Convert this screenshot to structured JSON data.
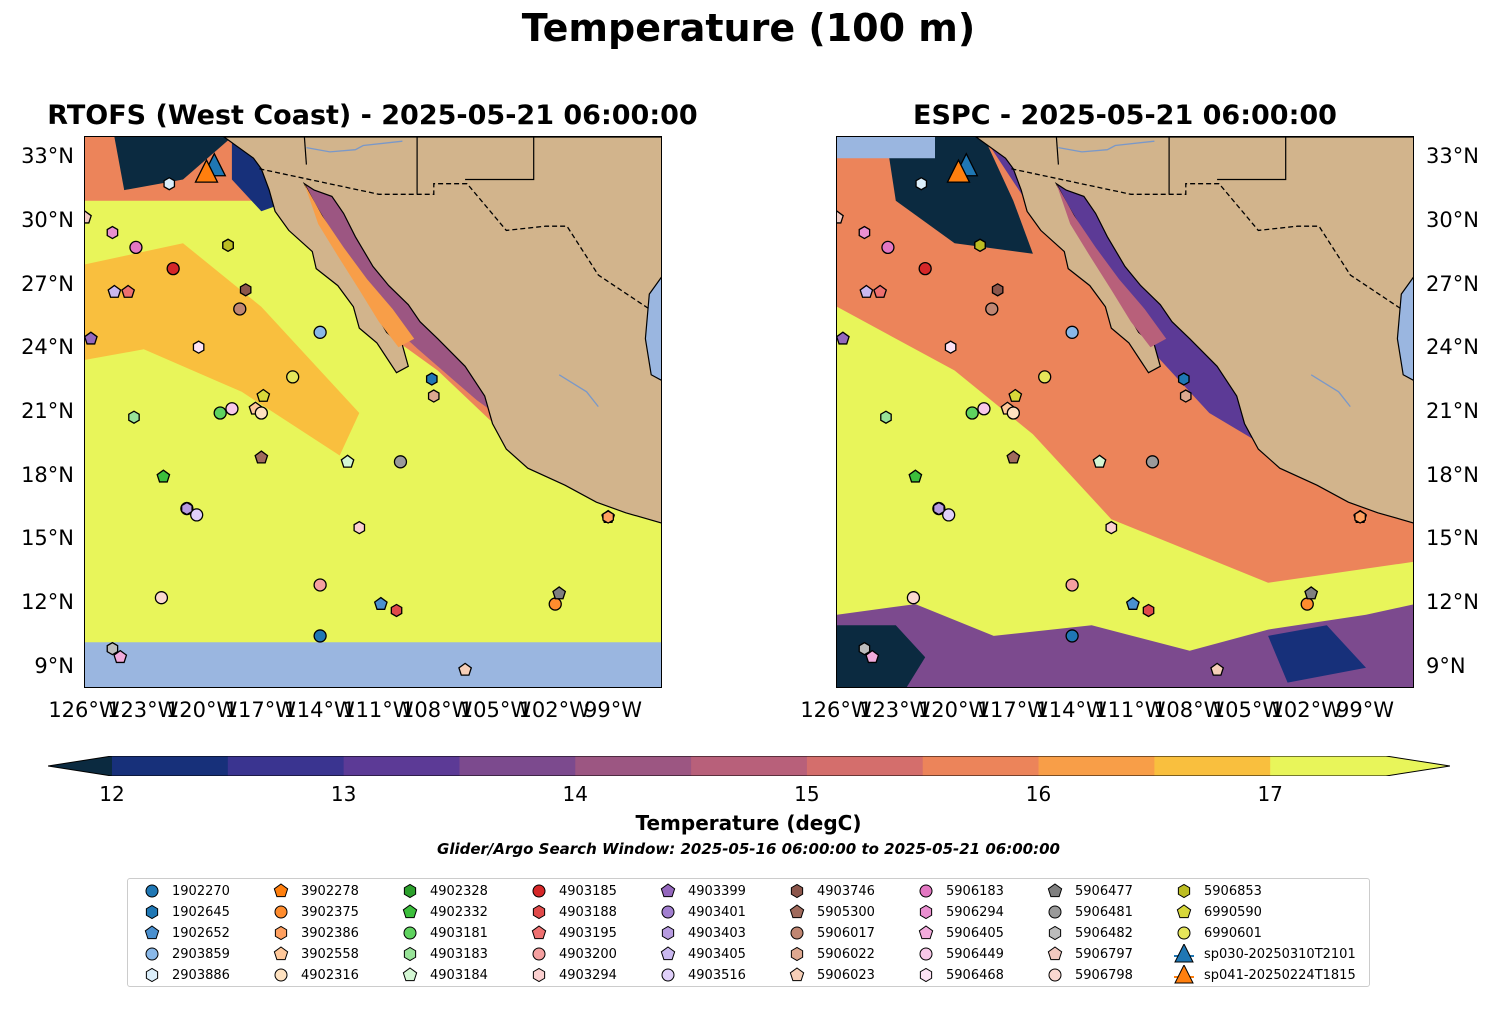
{
  "figure": {
    "suptitle": "Temperature (100 m)",
    "left_title": "RTOFS (West Coast) - 2025-05-21 06:00:00",
    "right_title": "ESPC - 2025-05-21 06:00:00",
    "colorbar_label": "Temperature (degC)",
    "search_window": "Glider/Argo Search Window: 2025-05-16 06:00:00 to 2025-05-21 06:00:00"
  },
  "chart_data": {
    "type": "heatmap",
    "xlim": [
      -126,
      -96.5
    ],
    "ylim": [
      8,
      34
    ],
    "x_ticks": [
      -126,
      -123,
      -120,
      -117,
      -114,
      -111,
      -108,
      -105,
      -102,
      -99
    ],
    "x_tick_labels": [
      "126°W",
      "123°W",
      "120°W",
      "117°W",
      "114°W",
      "111°W",
      "108°W",
      "105°W",
      "102°W",
      "99°W"
    ],
    "y_ticks": [
      9,
      12,
      15,
      18,
      21,
      24,
      27,
      30,
      33
    ],
    "y_tick_labels": [
      "9°N",
      "12°N",
      "15°N",
      "18°N",
      "21°N",
      "24°N",
      "27°N",
      "30°N",
      "33°N"
    ],
    "colorbar": {
      "min": 12,
      "max": 17.5,
      "step": 0.5,
      "extend": "both",
      "ticks": [
        12,
        13,
        14,
        15,
        16,
        17
      ],
      "colors": [
        "#0b2a40",
        "#17307a",
        "#3a3490",
        "#5c3a96",
        "#7c4a8e",
        "#9c5682",
        "#b8607a",
        "#d46e6c",
        "#ec845a",
        "#f89e48",
        "#f9bf3e",
        "#e8f55a"
      ]
    },
    "land_color": "#d2b48c",
    "water_color": "#9ab6e0",
    "platforms": [
      {
        "id": "1902270",
        "marker": "circle",
        "color": "#1f77b4",
        "lon": -114,
        "lat": 10.5
      },
      {
        "id": "1902645",
        "marker": "hexagon",
        "color": "#1f77b4",
        "lon": -108.3,
        "lat": 22.6
      },
      {
        "id": "1902652",
        "marker": "pentagon",
        "color": "#4a90cf",
        "lon": -110.9,
        "lat": 12
      },
      {
        "id": "2903859",
        "marker": "circle",
        "color": "#89b8e8",
        "lon": -114,
        "lat": 24.8
      },
      {
        "id": "2903886",
        "marker": "hexagon",
        "color": "#dbeefa",
        "lon": -121.7,
        "lat": 31.8
      },
      {
        "id": "3902278",
        "marker": "pentagon",
        "color": "#ff7f0e",
        "lon": -99.3,
        "lat": 16.1
      },
      {
        "id": "3902375",
        "marker": "circle",
        "color": "#ff8c2e",
        "lon": -102,
        "lat": 12
      },
      {
        "id": "3902386",
        "marker": "hexagon",
        "color": "#ffa060",
        "lon": -99.3,
        "lat": 16.1
      },
      {
        "id": "3902558",
        "marker": "pentagon",
        "color": "#ffc89a",
        "lon": -117.3,
        "lat": 21.2
      },
      {
        "id": "4902316",
        "marker": "circle",
        "color": "#ffe2c0",
        "lon": -117,
        "lat": 21
      },
      {
        "id": "4902328",
        "marker": "hexagon",
        "color": "#2ca02c",
        "lon": -118.7,
        "lat": 28.9
      },
      {
        "id": "4902332",
        "marker": "pentagon",
        "color": "#3cbf3c",
        "lon": -122,
        "lat": 18
      },
      {
        "id": "4903181",
        "marker": "circle",
        "color": "#5fd35f",
        "lon": -119.1,
        "lat": 21
      },
      {
        "id": "4903183",
        "marker": "hexagon",
        "color": "#98e398",
        "lon": -123.5,
        "lat": 20.8
      },
      {
        "id": "4903184",
        "marker": "pentagon",
        "color": "#d4f7d4",
        "lon": -112.6,
        "lat": 18.7
      },
      {
        "id": "4903185",
        "marker": "circle",
        "color": "#d62728",
        "lon": -121.5,
        "lat": 27.8
      },
      {
        "id": "4903188",
        "marker": "hexagon",
        "color": "#e04a4a",
        "lon": -110.1,
        "lat": 11.7
      },
      {
        "id": "4903195",
        "marker": "pentagon",
        "color": "#ee7070",
        "lon": -123.8,
        "lat": 26.7
      },
      {
        "id": "4903200",
        "marker": "circle",
        "color": "#f5a0a0",
        "lon": -114,
        "lat": 12.9
      },
      {
        "id": "4903294",
        "marker": "hexagon",
        "color": "#fbd0d0",
        "lon": -112,
        "lat": 15.6
      },
      {
        "id": "4903399",
        "marker": "pentagon",
        "color": "#9467bd",
        "lon": -125.7,
        "lat": 24.5
      },
      {
        "id": "4903401",
        "marker": "circle",
        "color": "#a27fd0",
        "lon": -120.8,
        "lat": 16.5
      },
      {
        "id": "4903403",
        "marker": "hexagon",
        "color": "#b79be0",
        "lon": -120.8,
        "lat": 16.5
      },
      {
        "id": "4903405",
        "marker": "pentagon",
        "color": "#cab8ef",
        "lon": -124.5,
        "lat": 26.7
      },
      {
        "id": "4903516",
        "marker": "circle",
        "color": "#e0d0fa",
        "lon": -120.3,
        "lat": 16.2
      },
      {
        "id": "4903746",
        "marker": "hexagon",
        "color": "#8c564b",
        "lon": -117.8,
        "lat": 26.8
      },
      {
        "id": "5905300",
        "marker": "pentagon",
        "color": "#a06a5c",
        "lon": -117,
        "lat": 18.9
      },
      {
        "id": "5906017",
        "marker": "circle",
        "color": "#c08672",
        "lon": -118.1,
        "lat": 25.9
      },
      {
        "id": "5906022",
        "marker": "hexagon",
        "color": "#dea890",
        "lon": -108.2,
        "lat": 21.8
      },
      {
        "id": "5906023",
        "marker": "pentagon",
        "color": "#f6cfb8",
        "lon": -106.6,
        "lat": 8.9
      },
      {
        "id": "5906183",
        "marker": "circle",
        "color": "#e377c2",
        "lon": -123.4,
        "lat": 28.8
      },
      {
        "id": "5906294",
        "marker": "hexagon",
        "color": "#ea8fd0",
        "lon": -124.6,
        "lat": 29.5
      },
      {
        "id": "5906405",
        "marker": "pentagon",
        "color": "#f2abdc",
        "lon": -124.2,
        "lat": 9.5
      },
      {
        "id": "5906449",
        "marker": "circle",
        "color": "#f8c8e8",
        "lon": -118.5,
        "lat": 21.2
      },
      {
        "id": "5906468",
        "marker": "hexagon",
        "color": "#fde2f4",
        "lon": -120.2,
        "lat": 24.1
      },
      {
        "id": "5906477",
        "marker": "pentagon",
        "color": "#7f7f7f",
        "lon": -101.8,
        "lat": 12.5
      },
      {
        "id": "5906481",
        "marker": "circle",
        "color": "#9a9a9a",
        "lon": -109.9,
        "lat": 18.7
      },
      {
        "id": "5906482",
        "marker": "hexagon",
        "color": "#bcbcbc",
        "lon": -124.6,
        "lat": 9.9
      },
      {
        "id": "5906797",
        "marker": "pentagon",
        "color": "#f2c8c0",
        "lon": -126,
        "lat": 30.2
      },
      {
        "id": "5906798",
        "marker": "circle",
        "color": "#fbd8d0",
        "lon": -122.1,
        "lat": 12.3
      },
      {
        "id": "5906853",
        "marker": "hexagon",
        "color": "#bcbd22",
        "lon": -118.7,
        "lat": 28.9
      },
      {
        "id": "6990590",
        "marker": "pentagon",
        "color": "#d8d83a",
        "lon": -116.9,
        "lat": 21.8
      },
      {
        "id": "6990601",
        "marker": "circle",
        "color": "#e6e65a",
        "lon": -115.4,
        "lat": 22.7
      },
      {
        "id": "sp030-20250310T2101",
        "marker": "triangle",
        "color": "#1f77b4",
        "lon": -119.4,
        "lat": 32.6
      },
      {
        "id": "sp041-20250224T1815",
        "marker": "triangle",
        "color": "#ff7f0e",
        "lon": -119.8,
        "lat": 32.3
      }
    ]
  }
}
